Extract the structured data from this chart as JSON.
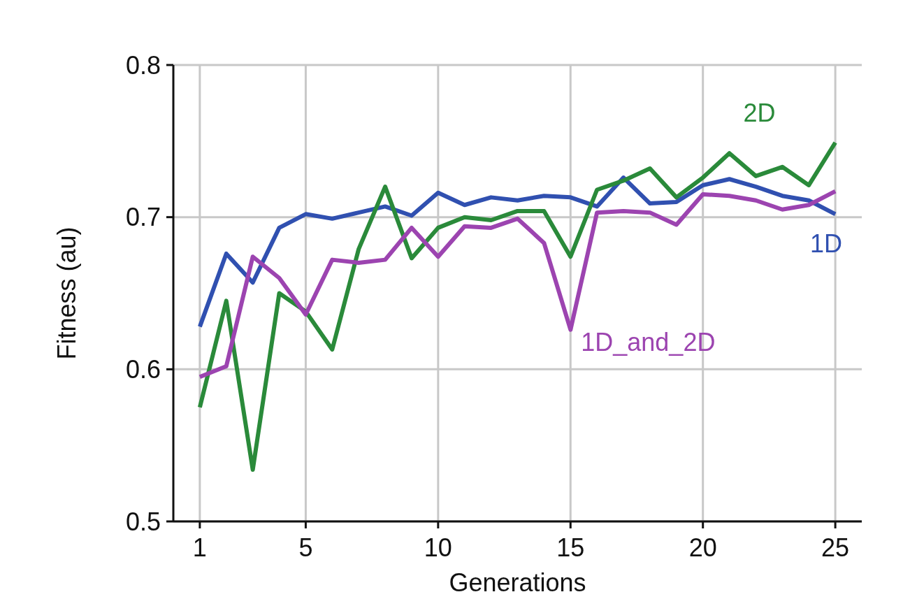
{
  "chart_data": {
    "type": "line",
    "xlabel": "Generations",
    "ylabel": "Fitness (au)",
    "x": [
      1,
      2,
      3,
      4,
      5,
      6,
      7,
      8,
      9,
      10,
      11,
      12,
      13,
      14,
      15,
      16,
      17,
      18,
      19,
      20,
      21,
      22,
      23,
      24,
      25
    ],
    "series": [
      {
        "name": "1D",
        "color": "#3050b0",
        "values": [
          0.628,
          0.676,
          0.657,
          0.693,
          0.702,
          0.699,
          0.703,
          0.707,
          0.701,
          0.716,
          0.708,
          0.713,
          0.711,
          0.714,
          0.713,
          0.707,
          0.726,
          0.709,
          0.71,
          0.721,
          0.725,
          0.72,
          0.714,
          0.711,
          0.702
        ]
      },
      {
        "name": "2D",
        "color": "#2a8a3a",
        "values": [
          0.575,
          0.645,
          0.534,
          0.65,
          0.638,
          0.613,
          0.679,
          0.72,
          0.673,
          0.693,
          0.7,
          0.698,
          0.704,
          0.704,
          0.674,
          0.718,
          0.724,
          0.732,
          0.713,
          0.726,
          0.742,
          0.727,
          0.733,
          0.721,
          0.749
        ]
      },
      {
        "name": "1D_and_2D",
        "color": "#9c44b0",
        "values": [
          0.595,
          0.602,
          0.674,
          0.66,
          0.636,
          0.672,
          0.67,
          0.672,
          0.693,
          0.674,
          0.694,
          0.693,
          0.699,
          0.683,
          0.626,
          0.703,
          0.704,
          0.703,
          0.695,
          0.715,
          0.714,
          0.711,
          0.705,
          0.708,
          0.717
        ]
      }
    ],
    "xlim": [
      0,
      26
    ],
    "xticks": [
      1,
      5,
      10,
      15,
      20,
      25
    ],
    "ylim": [
      0.5,
      0.8
    ],
    "yticks": [
      {
        "value": 0.5,
        "label": "0.5"
      },
      {
        "value": 0.6,
        "label": "0.6"
      },
      {
        "value": 0.7,
        "label": "0.7"
      },
      {
        "value": 0.8,
        "label": "0.8"
      }
    ],
    "grid": true,
    "marker": "none",
    "line_style": "solid"
  }
}
